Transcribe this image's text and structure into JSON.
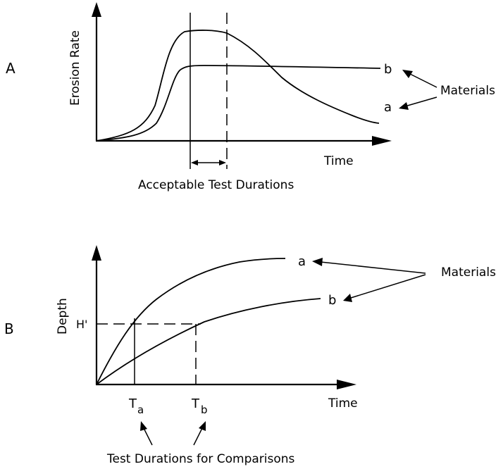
{
  "panel_a": {
    "letter": "A",
    "y_label": "Erosion Rate",
    "x_label": "Time",
    "curve_a_label": "a",
    "curve_b_label": "b",
    "materials_label": "Materials",
    "duration_caption": "Acceptable Test Durations"
  },
  "panel_b": {
    "letter": "B",
    "y_label": "Depth",
    "x_label": "Time",
    "curve_a_label": "a",
    "curve_b_label": "b",
    "materials_label": "Materials",
    "h_label": "H'",
    "ta_main": "T",
    "ta_sub": "a",
    "tb_main": "T",
    "tb_sub": "b",
    "duration_caption": "Test Durations for Comparisons"
  }
}
